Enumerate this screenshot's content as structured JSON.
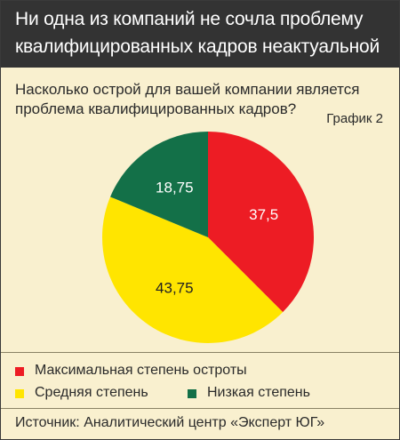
{
  "header": {
    "title_line1": "Ни одна из компаний не сочла проблему",
    "title_line2": "квалифицированных кадров неактуальной"
  },
  "question": {
    "line1": "Насколько острой для вашей компании является",
    "line2": "проблема квалифицированных кадров?"
  },
  "chart_number": "График 2",
  "chart_data": {
    "type": "pie",
    "categories": [
      "Максимальная степень остроты",
      "Средняя степень",
      "Низкая степень"
    ],
    "values": [
      37.5,
      43.75,
      18.75
    ],
    "value_labels": [
      "37,5",
      "43,75",
      "18,75"
    ],
    "colors": [
      "#ed1c24",
      "#ffe500",
      "#137048"
    ],
    "label_colors": [
      "#ffffff",
      "#222222",
      "#ffffff"
    ],
    "start": "12 o'clock",
    "direction": "clockwise",
    "legend_position": "bottom"
  },
  "source": "Источник: Аналитический центр «Эксперт ЮГ»"
}
